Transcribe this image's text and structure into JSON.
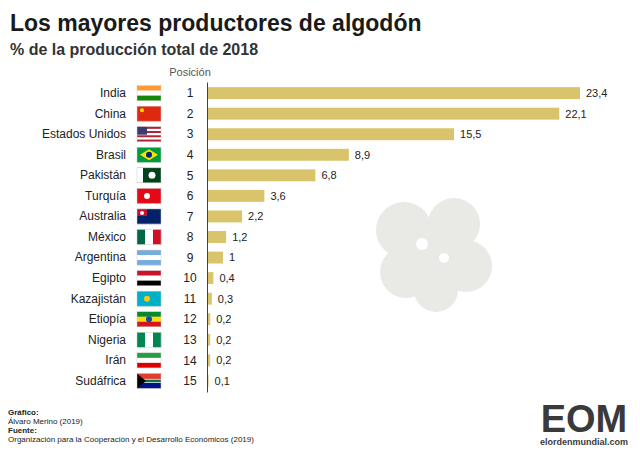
{
  "chart_data": {
    "type": "bar",
    "orientation": "horizontal",
    "title": "Los mayores productores de algodón",
    "subtitle": "% de la producción total de 2018",
    "position_label": "Posición",
    "positions": [
      "1",
      "2",
      "3",
      "4",
      "5",
      "6",
      "7",
      "8",
      "9",
      "10",
      "11",
      "12",
      "13",
      "14",
      "15"
    ],
    "categories": [
      "India",
      "China",
      "Estados Unidos",
      "Brasil",
      "Pakistán",
      "Turquía",
      "Australia",
      "México",
      "Argentina",
      "Egipto",
      "Kazajistán",
      "Etiopía",
      "Nigeria",
      "Irán",
      "Sudáfrica"
    ],
    "values": [
      23.4,
      22.1,
      15.5,
      8.9,
      6.8,
      3.6,
      2.2,
      1.2,
      1,
      0.4,
      0.3,
      0.2,
      0.2,
      0.2,
      0.1
    ],
    "value_labels": [
      "23,4",
      "22,1",
      "15,5",
      "8,9",
      "6,8",
      "3,6",
      "2,2",
      "1,2",
      "1",
      "0,4",
      "0,3",
      "0,2",
      "0,2",
      "0,2",
      "0,1"
    ],
    "color": "#d9c46c",
    "xlim": [
      0,
      23.4
    ],
    "xticks": [],
    "grid": false,
    "data_labels": true,
    "tick_labels": "y",
    "credit_label": "Gráfico:",
    "credit": "Álvaro Merino (2019)",
    "source_label": "Fuente:",
    "source": "Organización para la Cooperación y el Desarrollo Económicos (2019)",
    "logo": "EOM",
    "logo_site": "elordenmundial.com"
  }
}
